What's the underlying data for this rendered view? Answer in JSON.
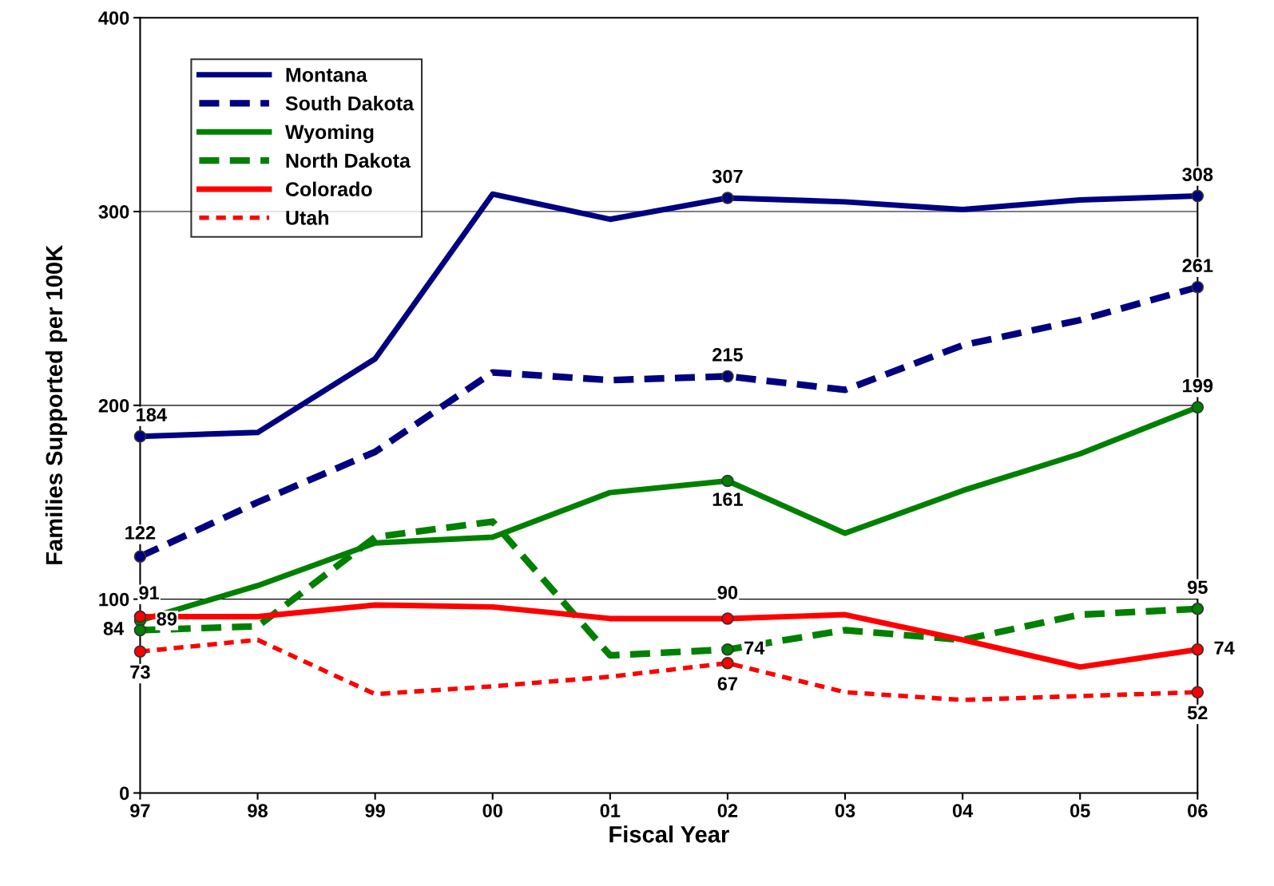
{
  "chart_data": {
    "type": "line",
    "xlabel": "Fiscal Year",
    "ylabel": "Families Supported per 100K",
    "categories": [
      "97",
      "98",
      "99",
      "00",
      "01",
      "02",
      "03",
      "04",
      "05",
      "06"
    ],
    "ylim": [
      0,
      400
    ],
    "yticks": [
      0,
      100,
      200,
      300,
      400
    ],
    "grid": "y",
    "legend": "top left",
    "series": [
      {
        "name": "Montana",
        "color": "#000080",
        "line_style": "solid",
        "values": [
          184,
          186,
          224,
          309,
          296,
          307,
          305,
          301,
          306,
          308
        ],
        "value_labels": [
          "184",
          null,
          null,
          null,
          null,
          "307",
          null,
          null,
          null,
          "308"
        ]
      },
      {
        "name": "South Dakota",
        "color": "#000080",
        "line_style": "dashed",
        "values": [
          122,
          150,
          176,
          217,
          213,
          215,
          208,
          231,
          244,
          261
        ],
        "value_labels": [
          "122",
          null,
          null,
          null,
          null,
          "215",
          null,
          null,
          null,
          "261"
        ]
      },
      {
        "name": "Wyoming",
        "color": "#008000",
        "line_style": "solid",
        "values": [
          89,
          107,
          129,
          132,
          155,
          161,
          134,
          156,
          175,
          199
        ],
        "value_labels": [
          "89",
          null,
          null,
          null,
          null,
          "161",
          null,
          null,
          null,
          "199"
        ]
      },
      {
        "name": "North Dakota",
        "color": "#008000",
        "line_style": "dashed",
        "values": [
          84,
          86,
          132,
          140,
          71,
          74,
          84,
          79,
          92,
          95
        ],
        "value_labels": [
          "84",
          null,
          null,
          null,
          null,
          "74",
          null,
          null,
          null,
          "95"
        ]
      },
      {
        "name": "Colorado",
        "color": "#ff0000",
        "line_style": "solid",
        "values": [
          91,
          91,
          97,
          96,
          90,
          90,
          92,
          79,
          65,
          74
        ],
        "value_labels": [
          "91",
          null,
          null,
          null,
          null,
          "90",
          null,
          null,
          null,
          "74"
        ]
      },
      {
        "name": "Utah",
        "color": "#ff0000",
        "line_style": "dotted",
        "values": [
          73,
          79,
          51,
          55,
          60,
          67,
          52,
          48,
          50,
          52
        ],
        "value_labels": [
          "73",
          null,
          null,
          null,
          null,
          "67",
          null,
          null,
          null,
          "52"
        ]
      }
    ]
  }
}
